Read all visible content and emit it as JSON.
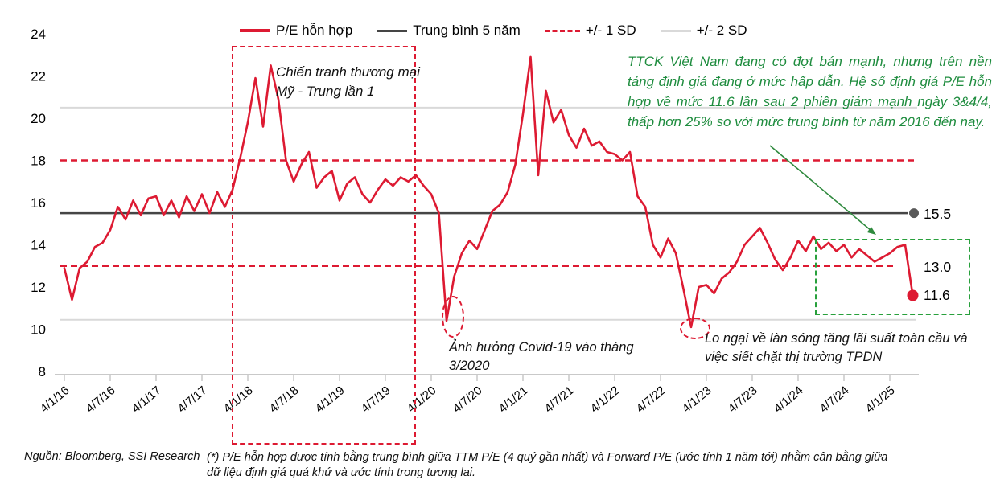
{
  "chart": {
    "legend": [
      {
        "label": "P/E hỗn hợp",
        "style": "solid-red"
      },
      {
        "label": "Trung bình 5 năm",
        "style": "solid-dark"
      },
      {
        "label": "+/- 1 SD",
        "style": "dashed-red"
      },
      {
        "label": "+/- 2 SD",
        "style": "solid-lightgray"
      }
    ]
  },
  "chart_data": {
    "type": "line",
    "title": "",
    "xlabel": "",
    "ylabel": "",
    "ylim": [
      8,
      24
    ],
    "y_ticks": [
      24,
      22,
      20,
      18,
      16,
      14,
      12,
      10,
      8
    ],
    "x_labels": [
      "4/1/16",
      "4/7/16",
      "4/1/17",
      "4/7/17",
      "4/1/18",
      "4/7/18",
      "4/1/19",
      "4/7/19",
      "4/1/20",
      "4/7/20",
      "4/1/21",
      "4/7/21",
      "4/1/22",
      "4/7/22",
      "4/1/23",
      "4/7/23",
      "4/1/24",
      "4/7/24",
      "4/1/25"
    ],
    "grid": false,
    "legend_position": "top",
    "series": [
      {
        "name": "P/E hỗn hợp",
        "color": "#dd1a32",
        "frequency": "monthly",
        "start": "1/2016",
        "end": "4/2025",
        "values": [
          12.9,
          11.4,
          12.9,
          13.2,
          13.9,
          14.1,
          14.7,
          15.8,
          15.2,
          16.1,
          15.4,
          16.2,
          16.3,
          15.4,
          16.1,
          15.3,
          16.3,
          15.6,
          16.4,
          15.5,
          16.5,
          15.8,
          16.6,
          18.1,
          19.8,
          21.9,
          19.6,
          22.5,
          20.9,
          18.0,
          17.0,
          17.8,
          18.4,
          16.7,
          17.2,
          17.5,
          16.1,
          16.9,
          17.2,
          16.4,
          16.0,
          16.6,
          17.1,
          16.8,
          17.2,
          17.0,
          17.3,
          16.8,
          16.4,
          15.5,
          10.4,
          12.5,
          13.6,
          14.2,
          13.8,
          14.7,
          15.6,
          15.9,
          16.5,
          17.8,
          20.2,
          22.9,
          17.3,
          21.3,
          19.8,
          20.4,
          19.2,
          18.6,
          19.5,
          18.7,
          18.9,
          18.4,
          18.3,
          18.0,
          18.4,
          16.3,
          15.8,
          14.0,
          13.4,
          14.3,
          13.6,
          11.9,
          10.1,
          12.0,
          12.1,
          11.7,
          12.4,
          12.7,
          13.2,
          14.0,
          14.4,
          14.8,
          14.1,
          13.3,
          12.8,
          13.4,
          14.2,
          13.7,
          14.4,
          13.8,
          14.1,
          13.7,
          14.0,
          13.4,
          13.8,
          13.5,
          13.2,
          13.4,
          13.6,
          13.9,
          14.0,
          11.6
        ]
      }
    ],
    "reference_lines": [
      {
        "name": "Trung bình 5 năm",
        "value": 15.5,
        "style": "solid",
        "color": "#454545",
        "end_label": "15.5"
      },
      {
        "name": "+1 SD",
        "value": 18.0,
        "style": "dashed",
        "color": "#dd1a32",
        "end_label": ""
      },
      {
        "name": "-1 SD",
        "value": 13.0,
        "style": "dashed",
        "color": "#dd1a32",
        "end_label": "13.0"
      },
      {
        "name": "+2 SD",
        "value": 20.5,
        "style": "solid",
        "color": "#d9d9d9",
        "end_label": ""
      },
      {
        "name": "-2 SD",
        "value": 10.45,
        "style": "solid",
        "color": "#d9d9d9",
        "end_label": ""
      }
    ],
    "last_value_label": "11.6"
  },
  "annotations": {
    "trade_war": "Chiến tranh thương mại Mỹ - Trung lần 1",
    "covid": "Ảnh hưởng Covid-19 vào tháng 3/2020",
    "rate_hike": "Lo ngại về làn sóng tăng lãi suất toàn cầu và việc siết chặt thị trường TPDN",
    "commentary": "TTCK Việt Nam đang có đợt bán mạnh, nhưng trên nền tảng định giá đang ở mức hấp dẫn. Hệ số định giá P/E hỗn hợp về mức 11.6 lần sau 2 phiên giảm mạnh ngày 3&4/4, thấp hơn 25% so với mức trung bình từ năm 2016 đến nay."
  },
  "footer": {
    "source": "Nguồn: Bloomberg, SSI Research",
    "footnote": "(*) P/E hỗn hợp được tính bằng trung bình giữa TTM P/E (4 quý gần nhất) và Forward P/E (ước tính 1 năm tới) nhằm cân bằng giữa dữ liệu định giá quá khứ và ước tính trong tương lai."
  },
  "colors": {
    "series_red": "#dd1a32",
    "mean_dark": "#454545",
    "sd2_gray": "#d9d9d9",
    "green_text": "#1e8c3e",
    "green_box": "#28a03c",
    "axis_gray": "#c9c9c9"
  }
}
